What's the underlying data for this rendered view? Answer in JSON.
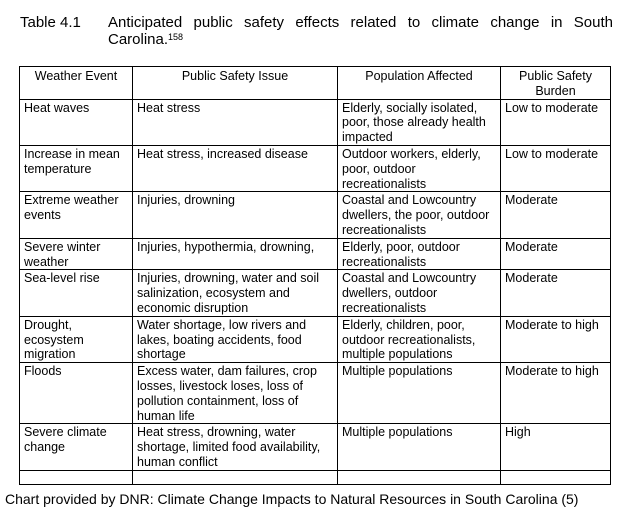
{
  "caption": {
    "label": "Table 4.1",
    "text": "Anticipated public safety effects related to climate change in South Carolina.",
    "footnote": "158"
  },
  "table": {
    "headers": [
      "Weather Event",
      "Public Safety Issue",
      "Population Affected",
      "Public Safety Burden"
    ],
    "rows": [
      [
        "Heat waves",
        "Heat stress",
        "Elderly, socially isolated, poor, those already health impacted",
        "Low to moderate"
      ],
      [
        "Increase in mean temperature",
        "Heat stress, increased disease",
        "Outdoor workers, elderly, poor, outdoor recreationalists",
        "Low to moderate"
      ],
      [
        "Extreme weather events",
        "Injuries, drowning",
        "Coastal and Lowcountry dwellers, the poor, outdoor recreationalists",
        "Moderate"
      ],
      [
        "Severe winter weather",
        "Injuries, hypothermia, drowning,",
        "Elderly, poor, outdoor recreationalists",
        "Moderate"
      ],
      [
        "Sea-level rise",
        "Injuries, drowning, water and soil salinization, ecosystem and economic disruption",
        "Coastal and Lowcountry dwellers, outdoor recreationalists",
        "Moderate"
      ],
      [
        "Drought, ecosystem migration",
        "Water shortage, low rivers and lakes, boating accidents, food shortage",
        "Elderly, children, poor, outdoor recreationalists, multiple populations",
        "Moderate to high"
      ],
      [
        "Floods",
        "Excess water, dam failures, crop losses, livestock loses, loss of pollution containment, loss of human life",
        "Multiple populations",
        "Moderate to high"
      ],
      [
        "Severe climate change",
        "Heat stress, drowning, water shortage, limited food availability, human conflict",
        "Multiple populations",
        "High"
      ]
    ]
  },
  "footer": "Chart provided by DNR: Climate Change Impacts to Natural Resources in South Carolina (5)"
}
